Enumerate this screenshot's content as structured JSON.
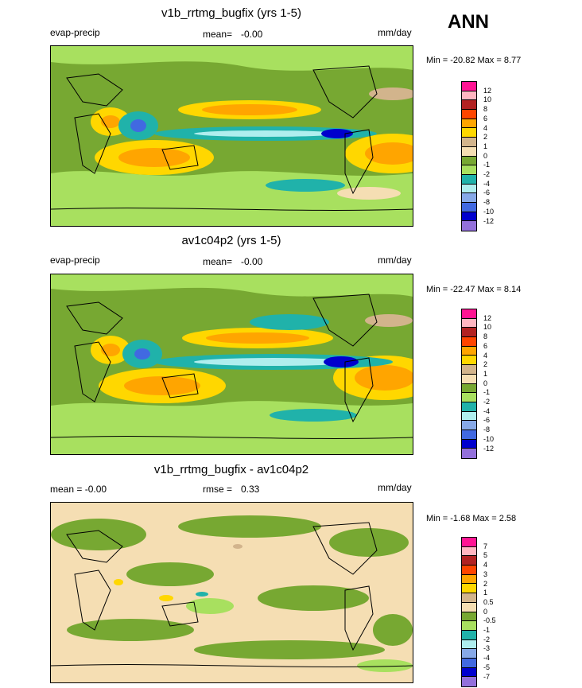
{
  "season": "ANN",
  "panels": [
    {
      "title": "v1b_rrtmg_bugfix (yrs 1-5)",
      "left": "evap-precip",
      "center_label": "mean=",
      "center_value": "-0.00",
      "right": "mm/day",
      "minmax": "Min = -20.82 Max =   8.77",
      "levels": [
        "12",
        "10",
        "8",
        "6",
        "4",
        "2",
        "1",
        "0",
        "-1",
        "-2",
        "-4",
        "-6",
        "-8",
        "-10",
        "-12"
      ],
      "colors": [
        "#ff1493",
        "#ffb6c1",
        "#b22222",
        "#ff4500",
        "#ffa500",
        "#ffd700",
        "#d2b48c",
        "#f5deb3",
        "#77a832",
        "#a8e05f",
        "#20b2aa",
        "#afeeee",
        "#87a9e8",
        "#4169e1",
        "#0000cd",
        "#9370db"
      ]
    },
    {
      "title": "av1c04p2 (yrs 1-5)",
      "left": "evap-precip",
      "center_label": "mean=",
      "center_value": "-0.00",
      "right": "mm/day",
      "minmax": "Min = -22.47 Max =   8.14",
      "levels": [
        "12",
        "10",
        "8",
        "6",
        "4",
        "2",
        "1",
        "0",
        "-1",
        "-2",
        "-4",
        "-6",
        "-8",
        "-10",
        "-12"
      ],
      "colors": [
        "#ff1493",
        "#ffb6c1",
        "#b22222",
        "#ff4500",
        "#ffa500",
        "#ffd700",
        "#d2b48c",
        "#f5deb3",
        "#77a832",
        "#a8e05f",
        "#20b2aa",
        "#afeeee",
        "#87a9e8",
        "#4169e1",
        "#0000cd",
        "#9370db"
      ]
    },
    {
      "title": "v1b_rrtmg_bugfix - av1c04p2",
      "left": "mean =  -0.00",
      "center_label": "rmse =",
      "center_value": "0.33",
      "right": "mm/day",
      "minmax": "Min =  -1.68 Max =   2.58",
      "levels": [
        "7",
        "5",
        "4",
        "3",
        "2",
        "1",
        "0.5",
        "0",
        "-0.5",
        "-1",
        "-2",
        "-3",
        "-4",
        "-5",
        "-7"
      ],
      "colors": [
        "#ff1493",
        "#ffb6c1",
        "#b22222",
        "#ff4500",
        "#ffa500",
        "#ffd700",
        "#d2b48c",
        "#f5deb3",
        "#77a832",
        "#a8e05f",
        "#20b2aa",
        "#afeeee",
        "#87a9e8",
        "#4169e1",
        "#0000cd",
        "#9370db"
      ]
    }
  ],
  "chart_data": {
    "type": "heatmap",
    "variable": "evap-precip",
    "units": "mm/day",
    "season": "ANN",
    "panels": [
      {
        "title": "v1b_rrtmg_bugfix (yrs 1-5)",
        "mean": -0.0,
        "min": -20.82,
        "max": 8.77,
        "contour_levels": [
          12,
          10,
          8,
          6,
          4,
          2,
          1,
          0,
          -1,
          -2,
          -4,
          -6,
          -8,
          -10,
          -12
        ]
      },
      {
        "title": "av1c04p2 (yrs 1-5)",
        "mean": -0.0,
        "min": -22.47,
        "max": 8.14,
        "contour_levels": [
          12,
          10,
          8,
          6,
          4,
          2,
          1,
          0,
          -1,
          -2,
          -4,
          -6,
          -8,
          -10,
          -12
        ]
      },
      {
        "title": "v1b_rrtmg_bugfix - av1c04p2",
        "mean": -0.0,
        "rmse": 0.33,
        "min": -1.68,
        "max": 2.58,
        "contour_levels": [
          7,
          5,
          4,
          3,
          2,
          1,
          0.5,
          0,
          -0.5,
          -1,
          -2,
          -3,
          -4,
          -5,
          -7
        ]
      }
    ]
  }
}
